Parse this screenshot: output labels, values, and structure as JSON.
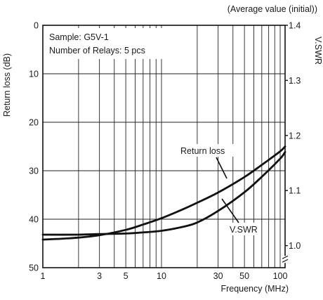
{
  "chart_data": {
    "type": "line",
    "title": "(Average value (initial))",
    "annotation_lines": [
      "Sample: G5V-1",
      "Number of Relays: 5 pcs"
    ],
    "xlabel": "Frequency (MHz)",
    "ylabel_left": "Return loss (dB)",
    "ylabel_right": "V.SWR",
    "x_scale": "log",
    "xlim": [
      1,
      110
    ],
    "x_ticks": [
      1,
      3,
      5,
      10,
      30,
      50,
      100
    ],
    "ylim_left": [
      0,
      50
    ],
    "y_left_inverted": true,
    "y_ticks_left": [
      0,
      10,
      20,
      30,
      40,
      50
    ],
    "ylim_right": [
      1.4,
      0.96
    ],
    "y_ticks_right": [
      1.4,
      1.3,
      1.2,
      1.1,
      1.0
    ],
    "right_axis_break": true,
    "grid": true,
    "series": [
      {
        "name": "Return loss",
        "axis": "left",
        "x": [
          1,
          1.5,
          2,
          3,
          5,
          7,
          10,
          15,
          20,
          30,
          50,
          70,
          100,
          110
        ],
        "y": [
          44.2,
          44.0,
          43.8,
          43.3,
          42.2,
          41.1,
          39.8,
          38.0,
          36.6,
          34.5,
          31.3,
          28.8,
          26.0,
          25.0
        ]
      },
      {
        "name": "V.SWR",
        "axis": "right",
        "x": [
          1,
          2,
          3,
          5,
          7,
          10,
          15,
          20,
          30,
          50,
          70,
          100,
          110
        ],
        "y": [
          1.02,
          1.02,
          1.021,
          1.022,
          1.024,
          1.027,
          1.034,
          1.042,
          1.063,
          1.097,
          1.125,
          1.158,
          1.17
        ]
      }
    ],
    "series_labels": [
      "Return loss",
      "V.SWR"
    ]
  }
}
